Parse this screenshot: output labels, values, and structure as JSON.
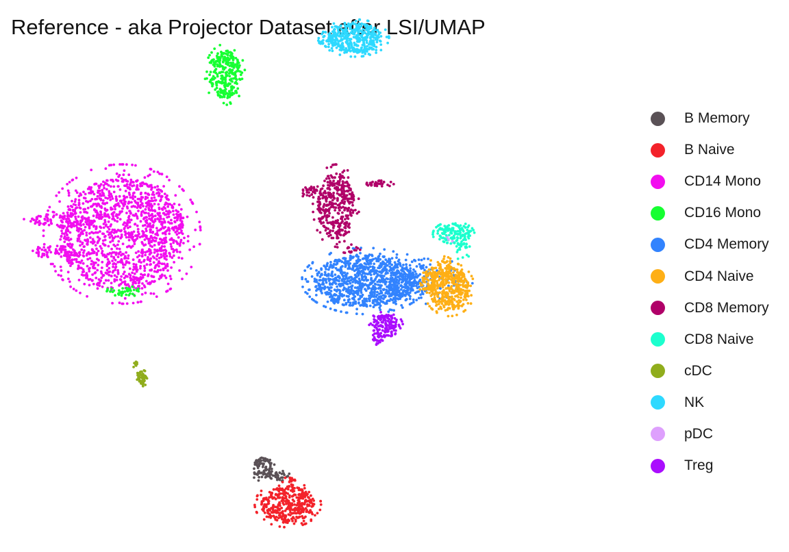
{
  "chart_data": {
    "type": "scatter",
    "title": "Reference - aka Projector Dataset after LSI/UMAP",
    "xlabel": "",
    "ylabel": "",
    "axes_visible": false,
    "grid": false,
    "legend_placement": "right",
    "xlim": [
      0,
      100
    ],
    "ylim": [
      0,
      100
    ],
    "series": [
      {
        "name": "B Memory",
        "color": "#5a5156",
        "clusters": [
          {
            "cx": 42.6,
            "cy": 15.2,
            "rx": 1.6,
            "ry": 1.9,
            "n": 90
          },
          {
            "cx": 45.2,
            "cy": 13.6,
            "rx": 1.6,
            "ry": 0.9,
            "n": 30
          }
        ]
      },
      {
        "name": "B Naive",
        "color": "#f3222a",
        "clusters": [
          {
            "cx": 46.7,
            "cy": 8.6,
            "rx": 4.3,
            "ry": 3.3,
            "n": 380
          },
          {
            "cx": 46.9,
            "cy": 12.9,
            "rx": 1.0,
            "ry": 1.1,
            "n": 20
          }
        ]
      },
      {
        "name": "CD14 Mono",
        "color": "#f20eef",
        "clusters": [
          {
            "cx": 19.8,
            "cy": 57.6,
            "rx": 10.2,
            "ry": 10.1,
            "n": 1500
          },
          {
            "cx": 9.5,
            "cy": 60.0,
            "rx": 4.6,
            "ry": 1.1,
            "n": 70
          },
          {
            "cx": 9.0,
            "cy": 54.3,
            "rx": 3.6,
            "ry": 1.1,
            "n": 55
          },
          {
            "cx": 22.5,
            "cy": 48.7,
            "rx": 1.4,
            "ry": 1.1,
            "n": 15
          }
        ]
      },
      {
        "name": "CD16 Mono",
        "color": "#16ff32",
        "clusters": [
          {
            "cx": 36.5,
            "cy": 86.5,
            "rx": 2.6,
            "ry": 4.4,
            "n": 280
          },
          {
            "cx": 20.0,
            "cy": 47.3,
            "rx": 3.0,
            "ry": 0.9,
            "n": 40
          }
        ]
      },
      {
        "name": "CD4 Memory",
        "color": "#3283fe",
        "clusters": [
          {
            "cx": 59.2,
            "cy": 49.1,
            "rx": 8.2,
            "ry": 4.8,
            "n": 950
          },
          {
            "cx": 65.5,
            "cy": 48.2,
            "rx": 3.0,
            "ry": 2.6,
            "n": 120
          },
          {
            "cx": 71.0,
            "cy": 49.0,
            "rx": 4.8,
            "ry": 3.4,
            "n": 60
          },
          {
            "cx": 64.0,
            "cy": 51.0,
            "rx": 7.0,
            "ry": 3.2,
            "n": 70
          }
        ]
      },
      {
        "name": "CD4 Naive",
        "color": "#feaf16",
        "clusters": [
          {
            "cx": 72.9,
            "cy": 47.6,
            "rx": 3.3,
            "ry": 3.9,
            "n": 430
          },
          {
            "cx": 69.5,
            "cy": 49.2,
            "rx": 1.4,
            "ry": 2.2,
            "n": 60
          },
          {
            "cx": 71.7,
            "cy": 51.7,
            "rx": 1.8,
            "ry": 1.5,
            "n": 40
          }
        ]
      },
      {
        "name": "CD8 Memory",
        "color": "#b00068",
        "clusters": [
          {
            "cx": 54.5,
            "cy": 62.7,
            "rx": 3.0,
            "ry": 6.0,
            "n": 380
          },
          {
            "cx": 50.2,
            "cy": 65.3,
            "rx": 1.3,
            "ry": 0.9,
            "n": 30
          },
          {
            "cx": 61.7,
            "cy": 66.7,
            "rx": 2.3,
            "ry": 0.6,
            "n": 30
          },
          {
            "cx": 57.0,
            "cy": 54.7,
            "rx": 1.5,
            "ry": 0.8,
            "n": 15
          }
        ]
      },
      {
        "name": "CD8 Naive",
        "color": "#1cffce",
        "clusters": [
          {
            "cx": 73.6,
            "cy": 57.6,
            "rx": 2.7,
            "ry": 1.8,
            "n": 150
          },
          {
            "cx": 75.1,
            "cy": 54.6,
            "rx": 1.2,
            "ry": 1.4,
            "n": 20
          }
        ]
      },
      {
        "name": "cDC",
        "color": "#90ad1c",
        "clusters": [
          {
            "cx": 23.0,
            "cy": 31.5,
            "rx": 0.8,
            "ry": 1.2,
            "n": 60
          },
          {
            "cx": 21.9,
            "cy": 34.0,
            "rx": 0.4,
            "ry": 0.7,
            "n": 8
          }
        ]
      },
      {
        "name": "NK",
        "color": "#2ed9ff",
        "clusters": [
          {
            "cx": 57.6,
            "cy": 93.1,
            "rx": 4.4,
            "ry": 2.7,
            "n": 420
          },
          {
            "cx": 53.0,
            "cy": 92.7,
            "rx": 1.6,
            "ry": 0.8,
            "n": 25
          }
        ]
      },
      {
        "name": "pDC",
        "color": "#dea0fd",
        "clusters": [
          {
            "cx": 73.0,
            "cy": 56.6,
            "rx": 0.6,
            "ry": 0.6,
            "n": 3
          }
        ]
      },
      {
        "name": "Treg",
        "color": "#aa0dfe",
        "clusters": [
          {
            "cx": 62.5,
            "cy": 40.9,
            "rx": 2.3,
            "ry": 2.1,
            "n": 140
          },
          {
            "cx": 61.3,
            "cy": 38.5,
            "rx": 0.8,
            "ry": 1.0,
            "n": 25
          }
        ]
      }
    ]
  }
}
